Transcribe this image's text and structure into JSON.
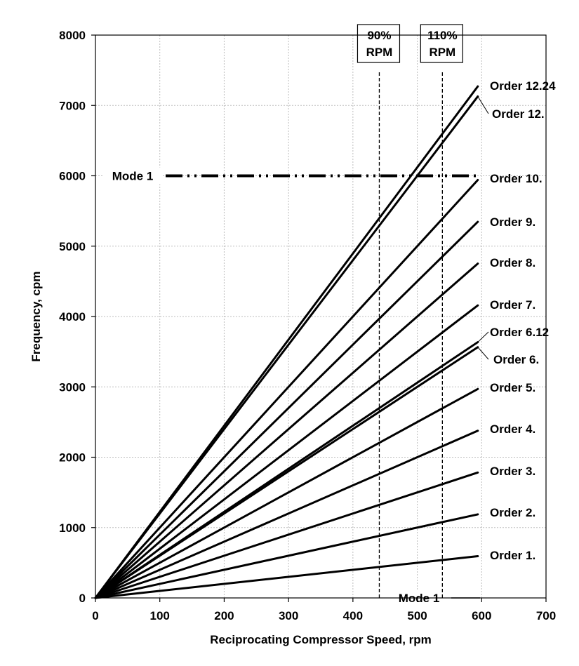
{
  "chart_data": {
    "type": "line",
    "xlabel": "Reciprocating Compressor Speed, rpm",
    "ylabel": "Frequency, cpm",
    "xlim": [
      0,
      700
    ],
    "ylim": [
      0,
      8000
    ],
    "xticks": [
      0,
      100,
      200,
      300,
      400,
      500,
      600,
      700
    ],
    "yticks": [
      0,
      1000,
      2000,
      3000,
      4000,
      5000,
      6000,
      7000,
      8000
    ],
    "grid": true,
    "x_end": 594,
    "series": [
      {
        "name": "Order 1.",
        "order": 1
      },
      {
        "name": "Order 2.",
        "order": 2
      },
      {
        "name": "Order 3.",
        "order": 3
      },
      {
        "name": "Order 4.",
        "order": 4
      },
      {
        "name": "Order 5.",
        "order": 5
      },
      {
        "name": "Order 6.",
        "order": 6
      },
      {
        "name": "Order 6.12",
        "order": 6.12
      },
      {
        "name": "Order 7.",
        "order": 7
      },
      {
        "name": "Order 8.",
        "order": 8
      },
      {
        "name": "Order 9.",
        "order": 9
      },
      {
        "name": "Order 10.",
        "order": 10
      },
      {
        "name": "Order 12.",
        "order": 12
      },
      {
        "name": "Order 12.24",
        "order": 12.24
      }
    ],
    "reference_lines": [
      {
        "label": "Mode 1",
        "orientation": "horizontal",
        "y": 6000,
        "style": "dash-dot-dot"
      },
      {
        "label": "Mode 1",
        "orientation": "horizontal",
        "y": 0,
        "style": "solid"
      },
      {
        "label_line1": "90%",
        "label_line2": "RPM",
        "orientation": "vertical",
        "x": 441,
        "style": "dashed"
      },
      {
        "label_line1": "110%",
        "label_line2": "RPM",
        "orientation": "vertical",
        "x": 539,
        "style": "dashed"
      }
    ]
  }
}
